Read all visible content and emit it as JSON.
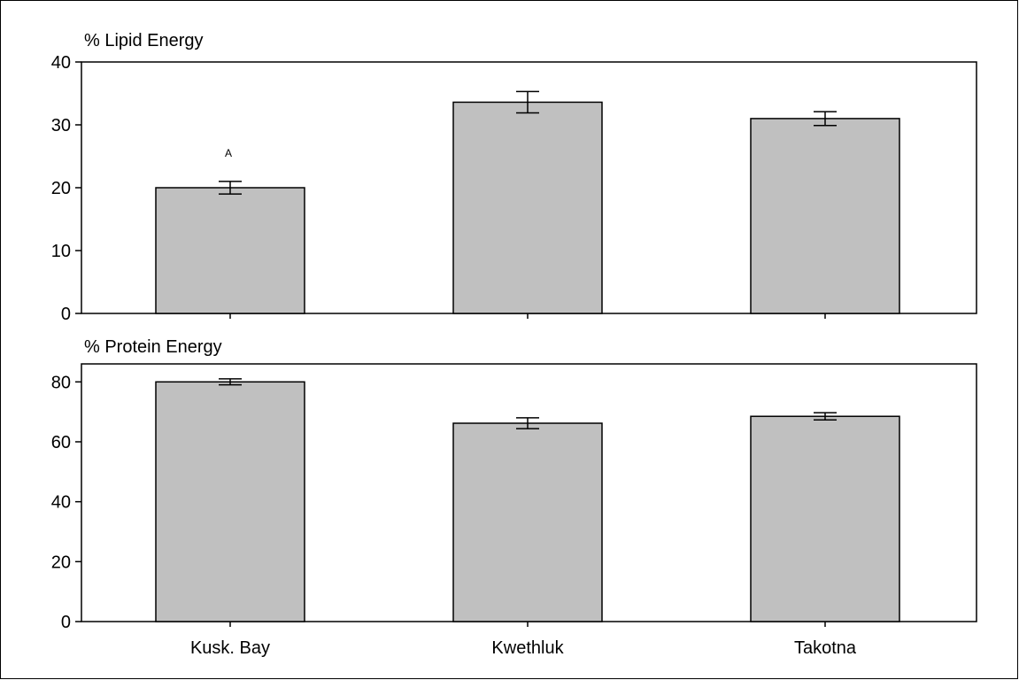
{
  "chart_data": {
    "type": "bar",
    "categories": [
      "Kusk. Bay",
      "Kwethluk",
      "Takotna"
    ],
    "bar_color": "#c0c0c0",
    "panels": [
      {
        "title": "% Lipid Energy",
        "ylim": [
          0,
          40
        ],
        "yticks": [
          0,
          10,
          20,
          30,
          40
        ],
        "values": [
          20.0,
          33.6,
          31.0
        ],
        "errors": [
          1.0,
          1.7,
          1.1
        ],
        "annotations": [
          {
            "category": "Kusk. Bay",
            "text": "A"
          }
        ]
      },
      {
        "title": "% Protein Energy",
        "ylim": [
          0,
          86
        ],
        "yticks": [
          0,
          20,
          40,
          60,
          80
        ],
        "values": [
          80.0,
          66.2,
          68.5
        ],
        "errors": [
          1.0,
          1.8,
          1.2
        ],
        "annotations": []
      }
    ]
  }
}
